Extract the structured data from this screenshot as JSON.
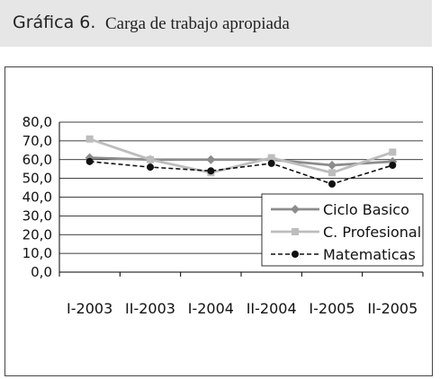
{
  "heading": {
    "label": "Gráfica 6.",
    "text": "Carga de trabajo apropiada"
  },
  "chart_data": {
    "type": "line",
    "title": "",
    "xlabel": "",
    "ylabel": "",
    "categories": [
      "I-2003",
      "II-2003",
      "I-2004",
      "II-2004",
      "I-2005",
      "II-2005"
    ],
    "ylim": [
      0,
      80
    ],
    "yticks": [
      "0,0",
      "10,0",
      "20,0",
      "30,0",
      "40,0",
      "50,0",
      "60,0",
      "70,0",
      "80,0"
    ],
    "grid": "horizontal major at each 10",
    "legend_position": "lower-right inside plot",
    "series": [
      {
        "name": "Ciclo Basico",
        "values": [
          61,
          60,
          60,
          60,
          57,
          59
        ],
        "color": "#8c8c8c",
        "marker": "diamond",
        "dash": "solid"
      },
      {
        "name": "C. Profesional",
        "values": [
          71,
          60,
          53,
          61,
          53,
          64
        ],
        "color": "#bdbdbd",
        "marker": "square",
        "dash": "solid"
      },
      {
        "name": "Matematicas",
        "values": [
          59,
          56,
          54,
          58,
          47,
          57
        ],
        "color": "#111111",
        "marker": "circle",
        "dash": "dashed"
      }
    ]
  }
}
